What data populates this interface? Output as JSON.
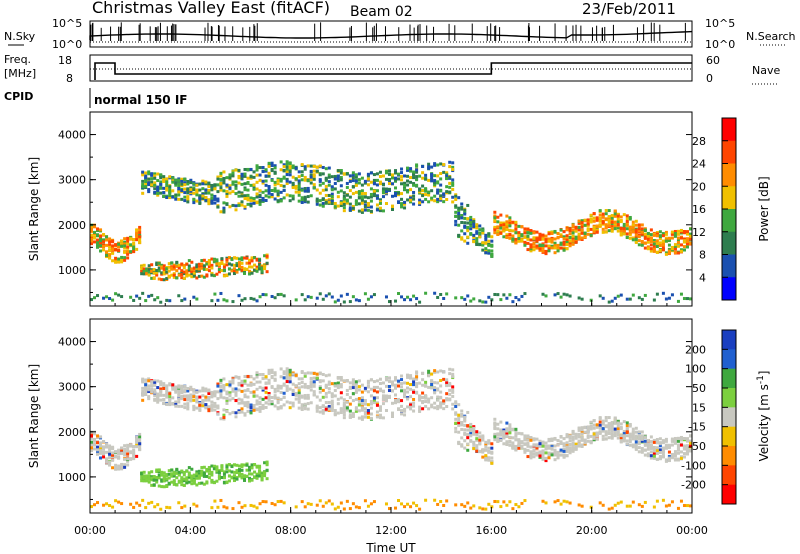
{
  "header": {
    "station": "Christmas Valley East (fitACF)",
    "beam": "Beam 02",
    "date": "23/Feb/2011"
  },
  "top_panels": {
    "nsky_label": "N.Sky",
    "nsky_ticks": [
      "10^5",
      "10^0"
    ],
    "nsearch_label": "N.Search",
    "nsearch_ticks": [
      "10^5",
      "10^0"
    ],
    "freq_label": "Freq.",
    "freq_unit": "[MHz]",
    "freq_ticks": [
      "18",
      "8"
    ],
    "nave_label": "Nave",
    "nave_ticks": [
      "60",
      "0"
    ],
    "cpid_label": "CPID",
    "cpid_value": "normal 150 IF"
  },
  "colors": {
    "power_scale": [
      "#0000ff",
      "#1a50b0",
      "#2e7d4f",
      "#3fa83f",
      "#f0c000",
      "#ff8c00",
      "#ff4500",
      "#ff0000"
    ],
    "velocity_scale": [
      "#1a3fc0",
      "#2060d0",
      "#3fa83f",
      "#7ccf3f",
      "#c8c8c0",
      "#f0c000",
      "#ff8c00",
      "#ff4500",
      "#ff0000"
    ]
  },
  "chart_data": [
    {
      "type": "heatmap",
      "panel": "power",
      "ylabel": "Slant Range [km]",
      "yticks": [
        "1000",
        "2000",
        "3000",
        "4000"
      ],
      "ylim": [
        200,
        4500
      ],
      "xlim_hours": [
        0,
        24
      ],
      "colorbar_label": "Power [dB]",
      "colorbar_ticks": [
        "4",
        "8",
        "12",
        "16",
        "20",
        "24",
        "28"
      ]
    },
    {
      "type": "heatmap",
      "panel": "velocity",
      "ylabel": "Slant Range [km]",
      "yticks": [
        "1000",
        "2000",
        "3000",
        "4000"
      ],
      "ylim": [
        200,
        4500
      ],
      "xlim_hours": [
        0,
        24
      ],
      "xlabel": "Time UT",
      "xticks": [
        "00:00",
        "04:00",
        "08:00",
        "12:00",
        "16:00",
        "20:00",
        "00:00"
      ],
      "colorbar_label": "Velocity [m s^-1]",
      "colorbar_ticks": [
        "200",
        "100",
        "50",
        "15",
        "-15",
        "-50",
        "-100",
        "-200"
      ]
    }
  ]
}
